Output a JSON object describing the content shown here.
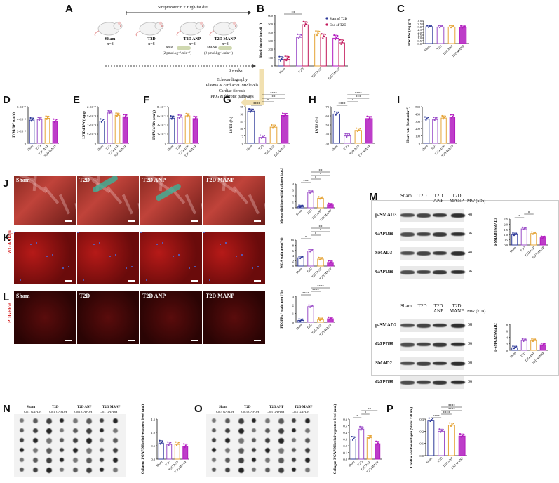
{
  "panels": {
    "A": "A",
    "B": "B",
    "C": "C",
    "D": "D",
    "E": "E",
    "F": "F",
    "G": "G",
    "H": "H",
    "I": "I",
    "J": "J",
    "K": "K",
    "L": "L",
    "M": "M",
    "N": "N",
    "O": "O",
    "P": "P"
  },
  "design": {
    "banner": "Streptozotocin + High-fat diet",
    "groups": [
      {
        "name": "Sham",
        "n": "n=8"
      },
      {
        "name": "T2D",
        "n": "n=8"
      },
      {
        "name": "T2D ANP",
        "n": "n=8",
        "dose_label": "ANP",
        "dose": "(2 pmol.kg⁻¹.min⁻¹)"
      },
      {
        "name": "T2D MANP",
        "n": "n=8",
        "dose_label": "MANP",
        "dose": "(2 pmol.kg⁻¹.min⁻¹)"
      }
    ],
    "duration": "8 weeks",
    "endpoints": [
      "Echocardiography",
      "Plasma & cardiac cGMP levels",
      "Cardiac fibrosis",
      "PKG & fibrotic pathways"
    ]
  },
  "colors": {
    "sham": "#2f3a99",
    "t2d": "#9b4dc8",
    "anp": "#e5a437",
    "manp": "#b21bbf",
    "b_end": "#c2185b"
  },
  "groups_short": [
    "Sham",
    "T2D",
    "T2D ANP",
    "T2D MANP"
  ],
  "chart_data": [
    {
      "id": "B",
      "type": "bar",
      "ylabel": "Blood glucose (mg.dl⁻¹)",
      "categories": [
        "Sham",
        "T2D",
        "T2D ANP",
        "T2D MANP"
      ],
      "series": [
        {
          "name": "Start of T2D",
          "values": [
            75,
            340,
            380,
            330
          ]
        },
        {
          "name": "End of T2D",
          "values": [
            80,
            490,
            345,
            275
          ]
        }
      ],
      "ylim": [
        0,
        600
      ],
      "yticks": [
        "0",
        "100",
        "200",
        "300",
        "400",
        "500",
        "600"
      ],
      "sig": [
        "**"
      ]
    },
    {
      "id": "C",
      "type": "bar",
      "ylabel": "HW/BW (mg.g⁻¹)",
      "categories": [
        "Sham",
        "T2D",
        "T2D ANP",
        "T2D MANP"
      ],
      "values": [
        3.0,
        2.95,
        2.95,
        2.9
      ],
      "ylim": [
        0,
        4
      ],
      "yticks": [
        "0.0",
        "0.5",
        "1.0",
        "1.5",
        "2.0",
        "2.5",
        "3.0",
        "3.5",
        "4.0"
      ]
    },
    {
      "id": "D",
      "type": "bar",
      "ylabel": "IVSd/BW (cm/g)",
      "categories": [
        "Sham",
        "T2D",
        "T2D ANP",
        "T2D MANP"
      ],
      "values": [
        0.0038,
        0.0039,
        0.0041,
        0.0036
      ],
      "ylim": [
        0,
        0.006
      ],
      "yticks": [
        "0",
        "2×10⁻³",
        "4×10⁻³",
        "6×10⁻³"
      ]
    },
    {
      "id": "E",
      "type": "bar",
      "ylabel": "LVIDd/BW (cm/g)",
      "categories": [
        "Sham",
        "T2D",
        "T2D ANP",
        "T2D MANP"
      ],
      "values": [
        0.0121,
        0.0166,
        0.0153,
        0.0145
      ],
      "ylim": [
        0,
        0.02
      ],
      "yticks": [
        "0",
        "5×10⁻³",
        "1×10⁻²",
        "1.5×10⁻²",
        "2×10⁻²"
      ]
    },
    {
      "id": "F",
      "type": "bar",
      "ylabel": "LVPWd/BW (cm/g)",
      "categories": [
        "Sham",
        "T2D",
        "T2D ANP",
        "T2D MANP"
      ],
      "values": [
        0.0055,
        0.0057,
        0.006,
        0.0054
      ],
      "ylim": [
        0,
        0.008
      ],
      "yticks": [
        "0",
        "2×10⁻³",
        "4×10⁻³",
        "6×10⁻³",
        "8×10⁻³"
      ]
    },
    {
      "id": "G",
      "type": "bar",
      "ylabel": "LV EF (%)",
      "categories": [
        "Sham",
        "T2D",
        "T2D ANP",
        "T2D MANP"
      ],
      "values": [
        92,
        74,
        81,
        89
      ],
      "ylim": [
        70,
        95
      ],
      "yticks": [
        "70",
        "75",
        "80",
        "85",
        "90",
        "95"
      ],
      "sig": [
        "****",
        "*",
        "**",
        "****"
      ]
    },
    {
      "id": "H",
      "type": "bar",
      "ylabel": "LV FS (%)",
      "categories": [
        "Sham",
        "T2D",
        "T2D ANP",
        "T2D MANP"
      ],
      "values": [
        62,
        38,
        44,
        57
      ],
      "ylim": [
        30,
        70
      ],
      "yticks": [
        "30",
        "40",
        "50",
        "60",
        "70"
      ],
      "sig": [
        "****",
        "*",
        "***",
        "****"
      ]
    },
    {
      "id": "I",
      "type": "bar",
      "ylabel": "Heart rate (beats.min⁻¹)",
      "categories": [
        "Sham",
        "T2D",
        "T2D ANP",
        "T2D MANP"
      ],
      "values": [
        330,
        325,
        345,
        360
      ],
      "ylim": [
        0,
        500
      ],
      "yticks": [
        "0",
        "100",
        "200",
        "300",
        "400",
        "500"
      ]
    },
    {
      "id": "J",
      "type": "bar",
      "ylabel": "Myocardial interstitial collagen (a.u.)",
      "categories": [
        "Sham",
        "T2D",
        "T2D ANP",
        "T2D MANP"
      ],
      "values": [
        0.2,
        2.6,
        1.6,
        0.5
      ],
      "ylim": [
        0,
        4
      ],
      "yticks": [
        "0",
        "1",
        "2",
        "3",
        "4"
      ],
      "sig": [
        "***",
        "*",
        "*",
        "**"
      ]
    },
    {
      "id": "K",
      "type": "bar",
      "ylabel": "WGA stain area (%)",
      "categories": [
        "Sham",
        "T2D",
        "T2D ANP",
        "T2D MANP"
      ],
      "values": [
        3.2,
        5.8,
        2.7,
        1.4
      ],
      "ylim": [
        0,
        10
      ],
      "yticks": [
        "0",
        "2",
        "4",
        "6",
        "8",
        "10"
      ],
      "sig": [
        "*",
        "*",
        "*",
        "**"
      ]
    },
    {
      "id": "L",
      "type": "bar",
      "ylabel": "PDGFRα⁺ stain area (%)",
      "categories": [
        "Sham",
        "T2D",
        "T2D ANP",
        "T2D MANP"
      ],
      "values": [
        0.2,
        1.8,
        0.3,
        0.4
      ],
      "ylim": [
        0,
        3
      ],
      "yticks": [
        "0",
        "1",
        "2",
        "3"
      ],
      "sig": [
        "****",
        "****",
        "****"
      ]
    },
    {
      "id": "M1",
      "type": "bar",
      "ylabel": "p-SMAD3/SMAD3",
      "categories": [
        "Sham",
        "T2D",
        "T2D ANP",
        "T2D MANP"
      ],
      "values": [
        1.0,
        1.55,
        1.1,
        0.7
      ],
      "ylim": [
        0,
        2.5
      ],
      "yticks": [
        "0.0",
        "0.5",
        "1.0",
        "1.5",
        "2.0",
        "2.5"
      ],
      "sig": [
        "*",
        "*"
      ]
    },
    {
      "id": "M2",
      "type": "bar",
      "ylabel": "p-SMAD2/SMAD2",
      "categories": [
        "Sham",
        "T2D",
        "T2D ANP",
        "T2D MANP"
      ],
      "values": [
        0.8,
        3.0,
        3.0,
        1.7
      ],
      "ylim": [
        0,
        8
      ],
      "yticks": [
        "0",
        "2",
        "4",
        "6",
        "8"
      ]
    },
    {
      "id": "N",
      "type": "bar",
      "ylabel": "Collagen 1/GAPDH relative protein level (a.u.)",
      "categories": [
        "Sham",
        "T2D",
        "T2D ANP",
        "T2D MANP"
      ],
      "values": [
        0.6,
        0.55,
        0.55,
        0.48
      ],
      "ylim": [
        0,
        1.5
      ],
      "yticks": [
        "0.0",
        "0.5",
        "1.0",
        "1.5"
      ]
    },
    {
      "id": "O",
      "type": "bar",
      "ylabel": "Collagen 3/GAPDH relative protein level (a.u.)",
      "categories": [
        "Sham",
        "T2D",
        "T2D ANP",
        "T2D MANP"
      ],
      "values": [
        0.3,
        0.45,
        0.32,
        0.23
      ],
      "ylim": [
        0,
        0.6
      ],
      "yticks": [
        "0.0",
        "0.1",
        "0.2",
        "0.3",
        "0.4",
        "0.5",
        "0.6"
      ],
      "sig": [
        "*",
        "*",
        "**"
      ]
    },
    {
      "id": "P",
      "type": "bar",
      "ylabel": "Cardiac soluble collagen (Sircol 570 nm)",
      "categories": [
        "Sham",
        "T2D",
        "T2D ANP",
        "T2D MANP"
      ],
      "values": [
        0.29,
        0.2,
        0.25,
        0.16
      ],
      "ylim": [
        0,
        0.3
      ],
      "yticks": [
        "0.0",
        "0.1",
        "0.2",
        "0.3"
      ],
      "sig": [
        "****",
        "****",
        "****",
        "****"
      ]
    }
  ],
  "micro": {
    "J": [
      "Sham",
      "T2D",
      "T2D ANP",
      "T2D MANP"
    ],
    "K_side": "WGA/Dapi",
    "L": [
      "Sham",
      "T2D",
      "T2D ANP",
      "T2D MANP"
    ],
    "L_side": "PDGFRα"
  },
  "blots": {
    "header": [
      "Sham",
      "T2D",
      "T2D ANP",
      "T2D MANP"
    ],
    "header_mw": "MW (kDa)",
    "top": [
      {
        "name": "p-SMAD3",
        "mw": "48"
      },
      {
        "name": "GAPDH",
        "mw": "36"
      },
      {
        "name": "SMAD3",
        "mw": "48"
      },
      {
        "name": "GAPDH",
        "mw": "36"
      }
    ],
    "bottom": [
      {
        "name": "p-SMAD2",
        "mw": "58"
      },
      {
        "name": "GAPDH",
        "mw": "36"
      },
      {
        "name": "SMAD2",
        "mw": "58"
      },
      {
        "name": "GAPDH",
        "mw": "36"
      }
    ]
  },
  "dotblot": {
    "N_head": [
      "Sham",
      "T2D",
      "T2D ANP",
      "T2D MANP"
    ],
    "N_sub": "Col1 GAPDH",
    "O_head": [
      "Sham",
      "T2D",
      "T2D ANP",
      "T2D MANP"
    ],
    "O_sub": "Col3 GAPDH"
  }
}
